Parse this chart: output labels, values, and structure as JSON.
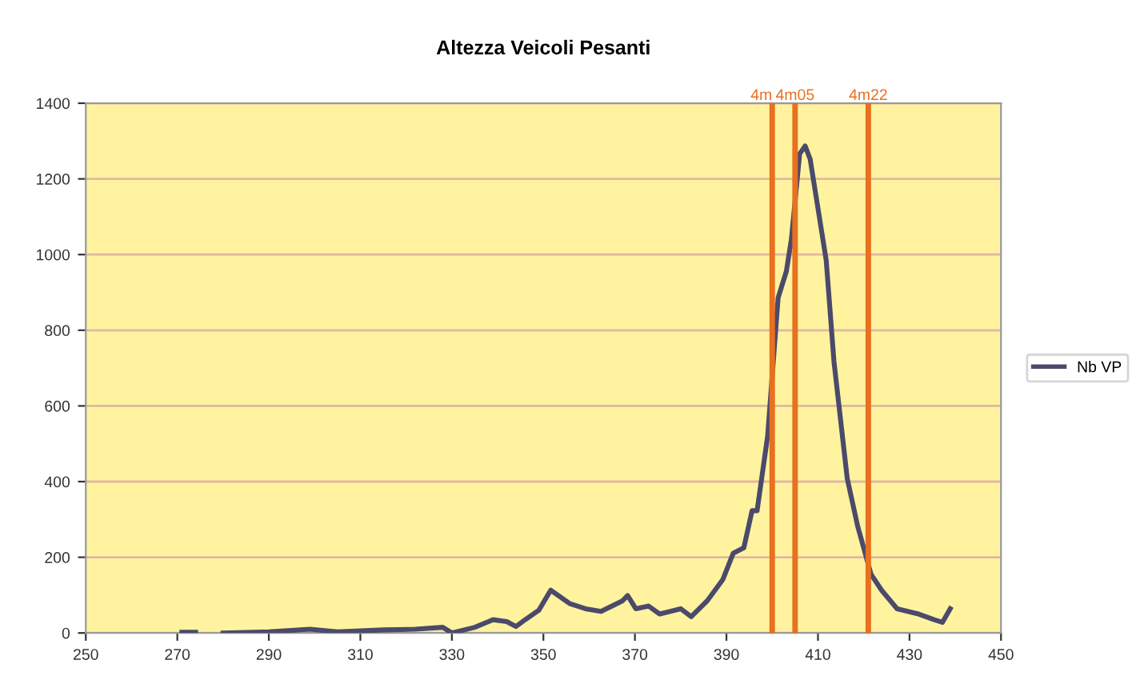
{
  "chart_data": {
    "type": "line",
    "title": "Altezza Veicoli Pesanti",
    "xlim": [
      250,
      450
    ],
    "xticks": [
      250,
      270,
      290,
      310,
      330,
      350,
      370,
      390,
      410,
      430,
      450
    ],
    "ylim": [
      0,
      1400
    ],
    "yticks": [
      0,
      200,
      400,
      600,
      800,
      1000,
      1200,
      1400
    ],
    "grid": "y",
    "legend": "right",
    "marker": "none",
    "line_style": "solid",
    "series": [
      {
        "name": "Nb VP",
        "color": "#4b4a6b",
        "x": [
          271,
          274,
          276,
          280,
          290,
          299,
          305,
          315,
          322,
          328,
          330,
          335,
          338,
          339,
          342,
          344,
          346,
          349,
          351.6,
          355.7,
          359.2,
          362.6,
          367.3,
          368.4,
          370.2,
          373,
          375.4,
          380,
          382.3,
          385.8,
          389.2,
          391.5,
          393.8,
          395.6,
          396.7,
          399,
          401.3,
          403.1,
          404.2,
          406,
          407.2,
          408.3,
          411.8,
          413.5,
          416.4,
          418.7,
          421.6,
          423.9,
          427.3,
          432,
          435.4,
          437.2,
          438.9
        ],
        "values": [
          2,
          2,
          null,
          0,
          3,
          10,
          3,
          8,
          10,
          15,
          0,
          15,
          30,
          35,
          30,
          17,
          35,
          60,
          113,
          78,
          64,
          57,
          85,
          99,
          64,
          71,
          50,
          64,
          43,
          85,
          141,
          211,
          225,
          323,
          323,
          520,
          886,
          956,
          1041,
          1266,
          1287,
          1252,
          985,
          717,
          408,
          281,
          155,
          113,
          64,
          50,
          35,
          28,
          64
        ]
      }
    ],
    "ref_lines": [
      {
        "axis": "x",
        "value": 400,
        "label": "4m",
        "color": "#e8701f"
      },
      {
        "axis": "x",
        "value": 405,
        "label": "4m05",
        "color": "#e8701f"
      },
      {
        "axis": "x",
        "value": 421,
        "label": "4m22",
        "color": "#e8701f"
      }
    ]
  }
}
